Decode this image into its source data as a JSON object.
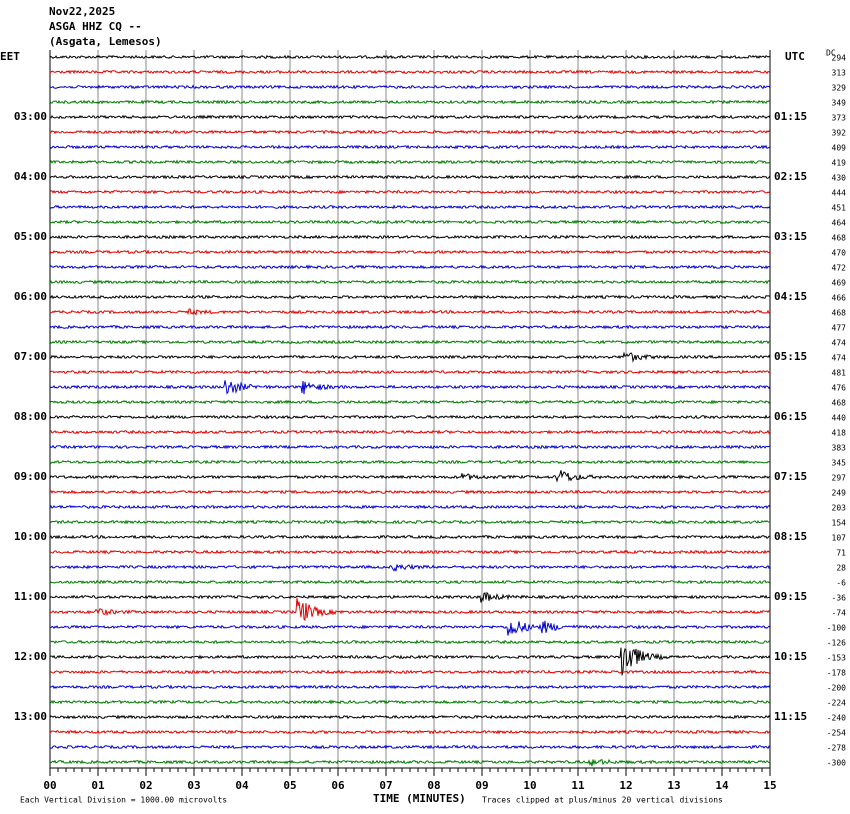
{
  "header": {
    "date": "Nov22,2025",
    "station": "ASGA HHZ CQ --",
    "location": "(Asgata, Lemesos)"
  },
  "left_axis": {
    "label": "EET",
    "times": [
      "03:00",
      "04:00",
      "05:00",
      "06:00",
      "07:00",
      "08:00",
      "09:00",
      "10:00",
      "11:00",
      "12:00",
      "13:00"
    ]
  },
  "right_axis": {
    "label": "UTC",
    "times": [
      "01:15",
      "02:15",
      "03:15",
      "04:15",
      "05:15",
      "06:15",
      "07:15",
      "08:15",
      "09:15",
      "10:15",
      "11:15"
    ]
  },
  "dc": {
    "label": "DC",
    "values": [
      294,
      313,
      329,
      349,
      373,
      392,
      409,
      419,
      430,
      444,
      451,
      464,
      468,
      470,
      472,
      469,
      466,
      468,
      477,
      474,
      474,
      481,
      476,
      468,
      440,
      418,
      383,
      345,
      297,
      249,
      203,
      154,
      107,
      71,
      28,
      -6,
      -36,
      -74,
      -100,
      -126,
      -153,
      -178,
      -200,
      -224,
      -240,
      -254,
      -278,
      -300
    ]
  },
  "x_axis": {
    "title": "TIME (MINUTES)",
    "ticks": [
      "00",
      "01",
      "02",
      "03",
      "04",
      "05",
      "06",
      "07",
      "08",
      "09",
      "10",
      "11",
      "12",
      "13",
      "14",
      "15"
    ]
  },
  "footer": {
    "scale_note": "Each Vertical Division = 1000.00 microvolts",
    "clip_note": "Traces clipped at plus/minus 20 vertical divisions"
  }
}
